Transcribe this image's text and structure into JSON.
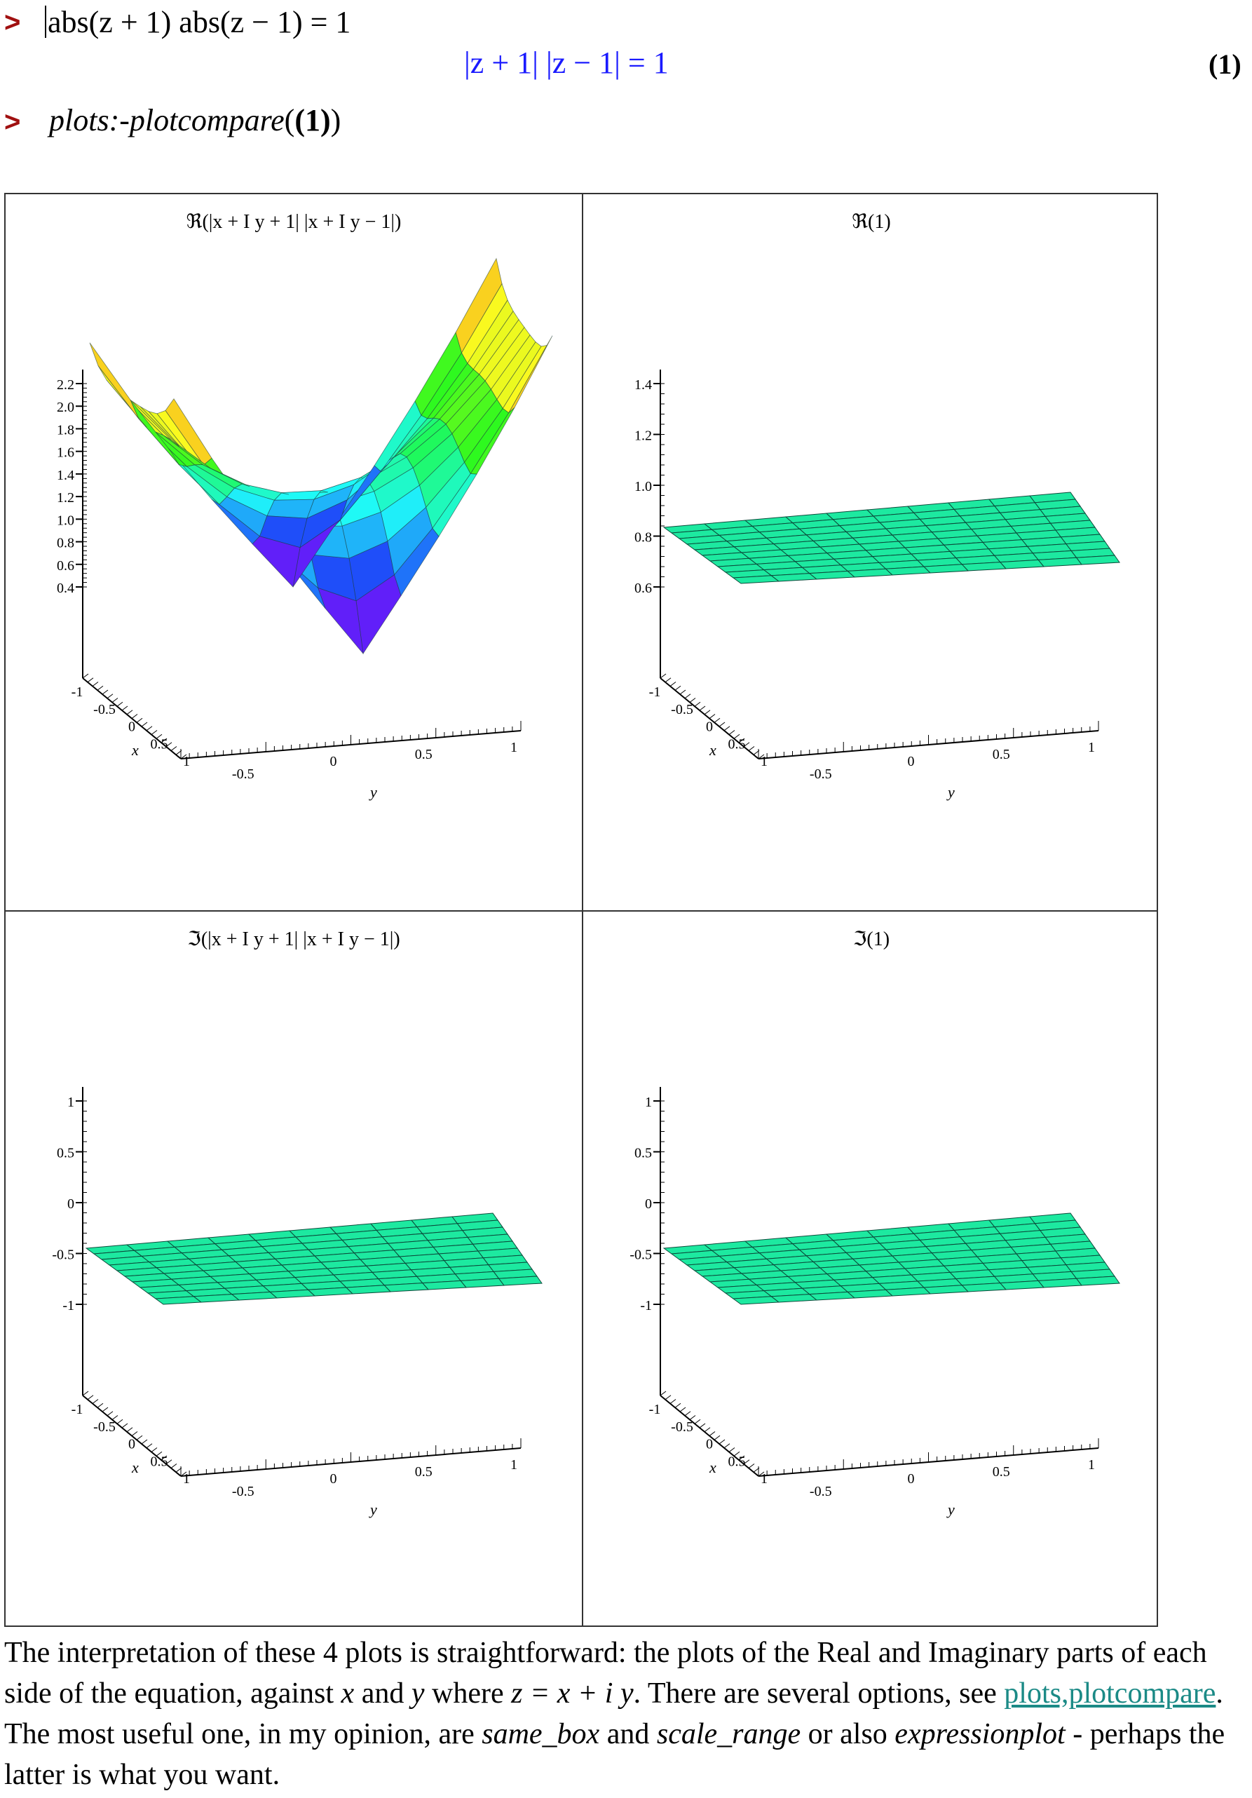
{
  "worksheet": {
    "prompt_symbol": ">",
    "input1": "abs(z + 1) abs(z − 1) = 1",
    "output1": "|z + 1| |z − 1| = 1",
    "equation_label": "(1)",
    "input2_cmd": "plots:-plotcompare",
    "input2_args_open": "(",
    "input2_arg": "(1)",
    "input2_args_close": ")"
  },
  "plots": [
    {
      "title": "ℜ(|x + I y + 1| |x + I y − 1|)",
      "z_ticks": [
        "2.2",
        "2.0",
        "1.8",
        "1.6",
        "1.4",
        "1.2",
        "1.0",
        "0.8",
        "0.6",
        "0.4"
      ],
      "x_ticks": [
        "-1",
        "-0.5",
        "0",
        "0.5",
        "1"
      ],
      "y_ticks": [
        "-0.5",
        "0",
        "0.5",
        "1"
      ],
      "xlabel": "x",
      "ylabel": "y",
      "surface": "valley"
    },
    {
      "title": "ℜ(1)",
      "z_ticks": [
        "1.4",
        "1.2",
        "1.0",
        "0.8",
        "0.6"
      ],
      "x_ticks": [
        "-1",
        "-0.5",
        "0",
        "0.5",
        "1"
      ],
      "y_ticks": [
        "-0.5",
        "0",
        "0.5",
        "1"
      ],
      "xlabel": "x",
      "ylabel": "y",
      "surface": "flat",
      "surface_color": "#1de9a0"
    },
    {
      "title": "ℑ(|x + I y + 1| |x + I y − 1|)",
      "z_ticks": [
        "1",
        "0.5",
        "0",
        "-0.5",
        "-1"
      ],
      "x_ticks": [
        "-1",
        "-0.5",
        "0",
        "0.5",
        "1"
      ],
      "y_ticks": [
        "-0.5",
        "0",
        "0.5",
        "1"
      ],
      "xlabel": "x",
      "ylabel": "y",
      "surface": "flat",
      "surface_color": "#1de9a0"
    },
    {
      "title": "ℑ(1)",
      "z_ticks": [
        "1",
        "0.5",
        "0",
        "-0.5",
        "-1"
      ],
      "x_ticks": [
        "-1",
        "-0.5",
        "0",
        "0.5",
        "1"
      ],
      "y_ticks": [
        "-0.5",
        "0",
        "0.5",
        "1"
      ],
      "xlabel": "x",
      "ylabel": "y",
      "surface": "flat",
      "surface_color": "#1de9a0"
    }
  ],
  "paragraph": {
    "p1": "The interpretation of these 4 plots is straightforward: the plots of the Real and Imaginary parts of each side of the equation, against ",
    "x": "x",
    "and": " and ",
    "y": "y",
    "where": " where ",
    "eq": "z = x + i y",
    "p2": ". There are several options, see ",
    "link": "plots,plotcompare",
    "p3": ". The most useful one, in my opinion, are ",
    "same_box": "same_box",
    "and2": " and ",
    "scale_range": "scale_range",
    "p4": " or also ",
    "expressionplot": "expressionplot",
    "p5": " - perhaps the latter is what you want."
  }
}
